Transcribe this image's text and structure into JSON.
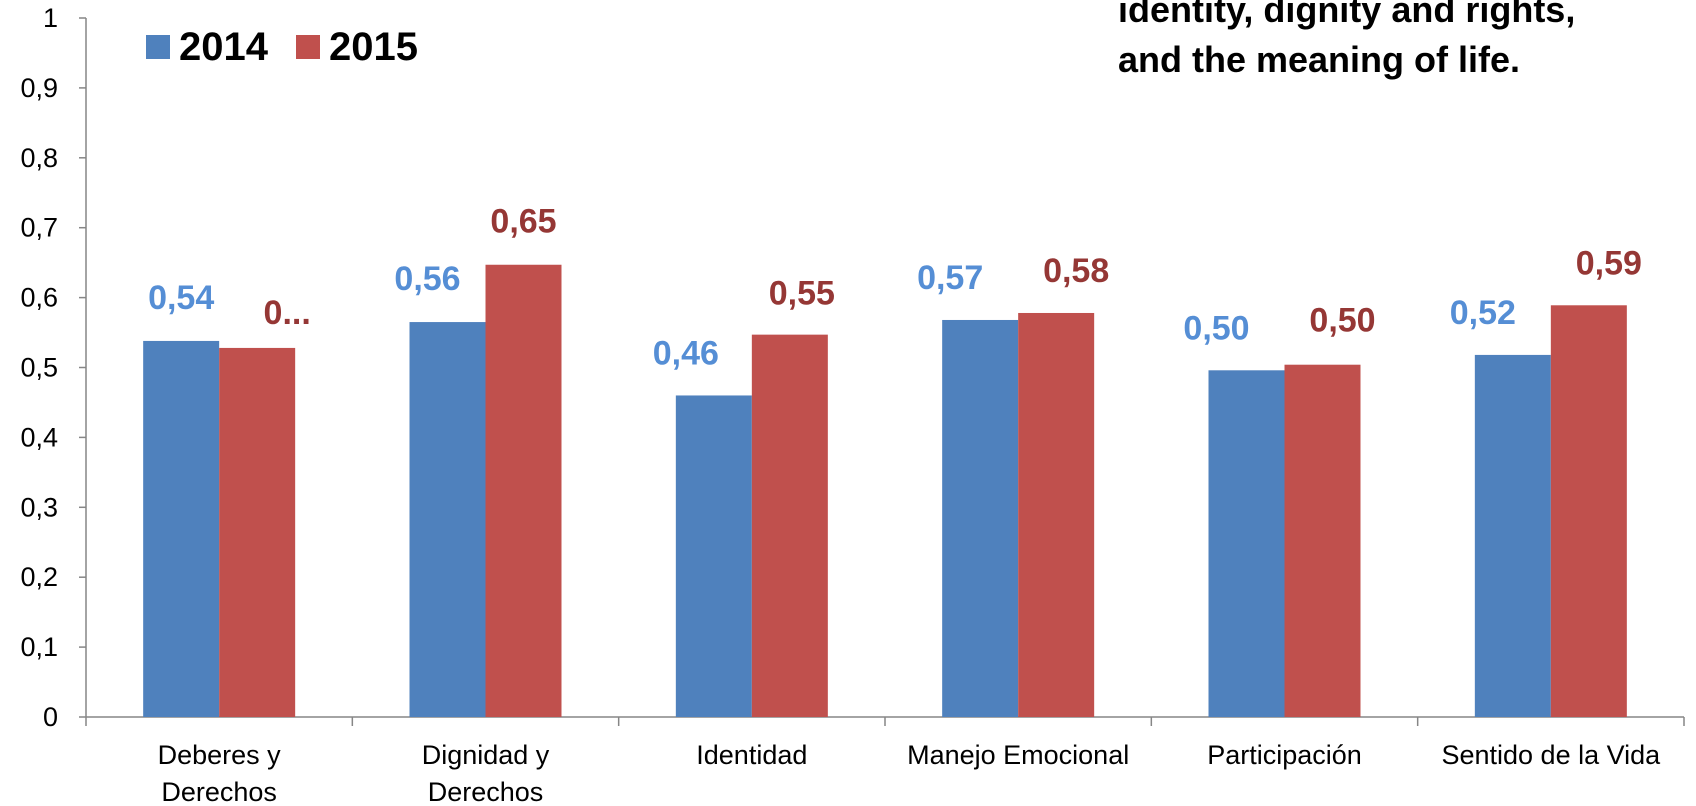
{
  "chart_data": {
    "type": "bar",
    "categories": [
      [
        "Deberes y",
        "Derechos"
      ],
      [
        "Dignidad y",
        "Derechos"
      ],
      [
        "Identidad"
      ],
      [
        "Manejo Emocional"
      ],
      [
        "Participación"
      ],
      [
        "Sentido de la Vida"
      ]
    ],
    "series": [
      {
        "name": "2014",
        "color": "#4f81bd",
        "label_color": "#558ed5",
        "values": [
          0.538,
          0.565,
          0.46,
          0.568,
          0.496,
          0.518
        ],
        "labels": [
          "0,54",
          "0,56",
          "0,46",
          "0,57",
          "0,50",
          "0,52"
        ]
      },
      {
        "name": "2015",
        "color": "#c0504d",
        "label_color": "#953735",
        "values": [
          0.528,
          0.647,
          0.547,
          0.578,
          0.504,
          0.589
        ],
        "labels": [
          "0...",
          "0,65",
          "0,55",
          "0,58",
          "0,50",
          "0,59"
        ]
      }
    ],
    "y_ticks": [
      "0",
      "0,1",
      "0,2",
      "0,3",
      "0,4",
      "0,5",
      "0,6",
      "0,7",
      "0,8",
      "0,9",
      "1"
    ],
    "ylim": [
      0,
      1
    ],
    "grid": false,
    "legend": "top-left",
    "annotation": [
      "identity, dignity and rights,",
      "and the meaning of life."
    ]
  }
}
